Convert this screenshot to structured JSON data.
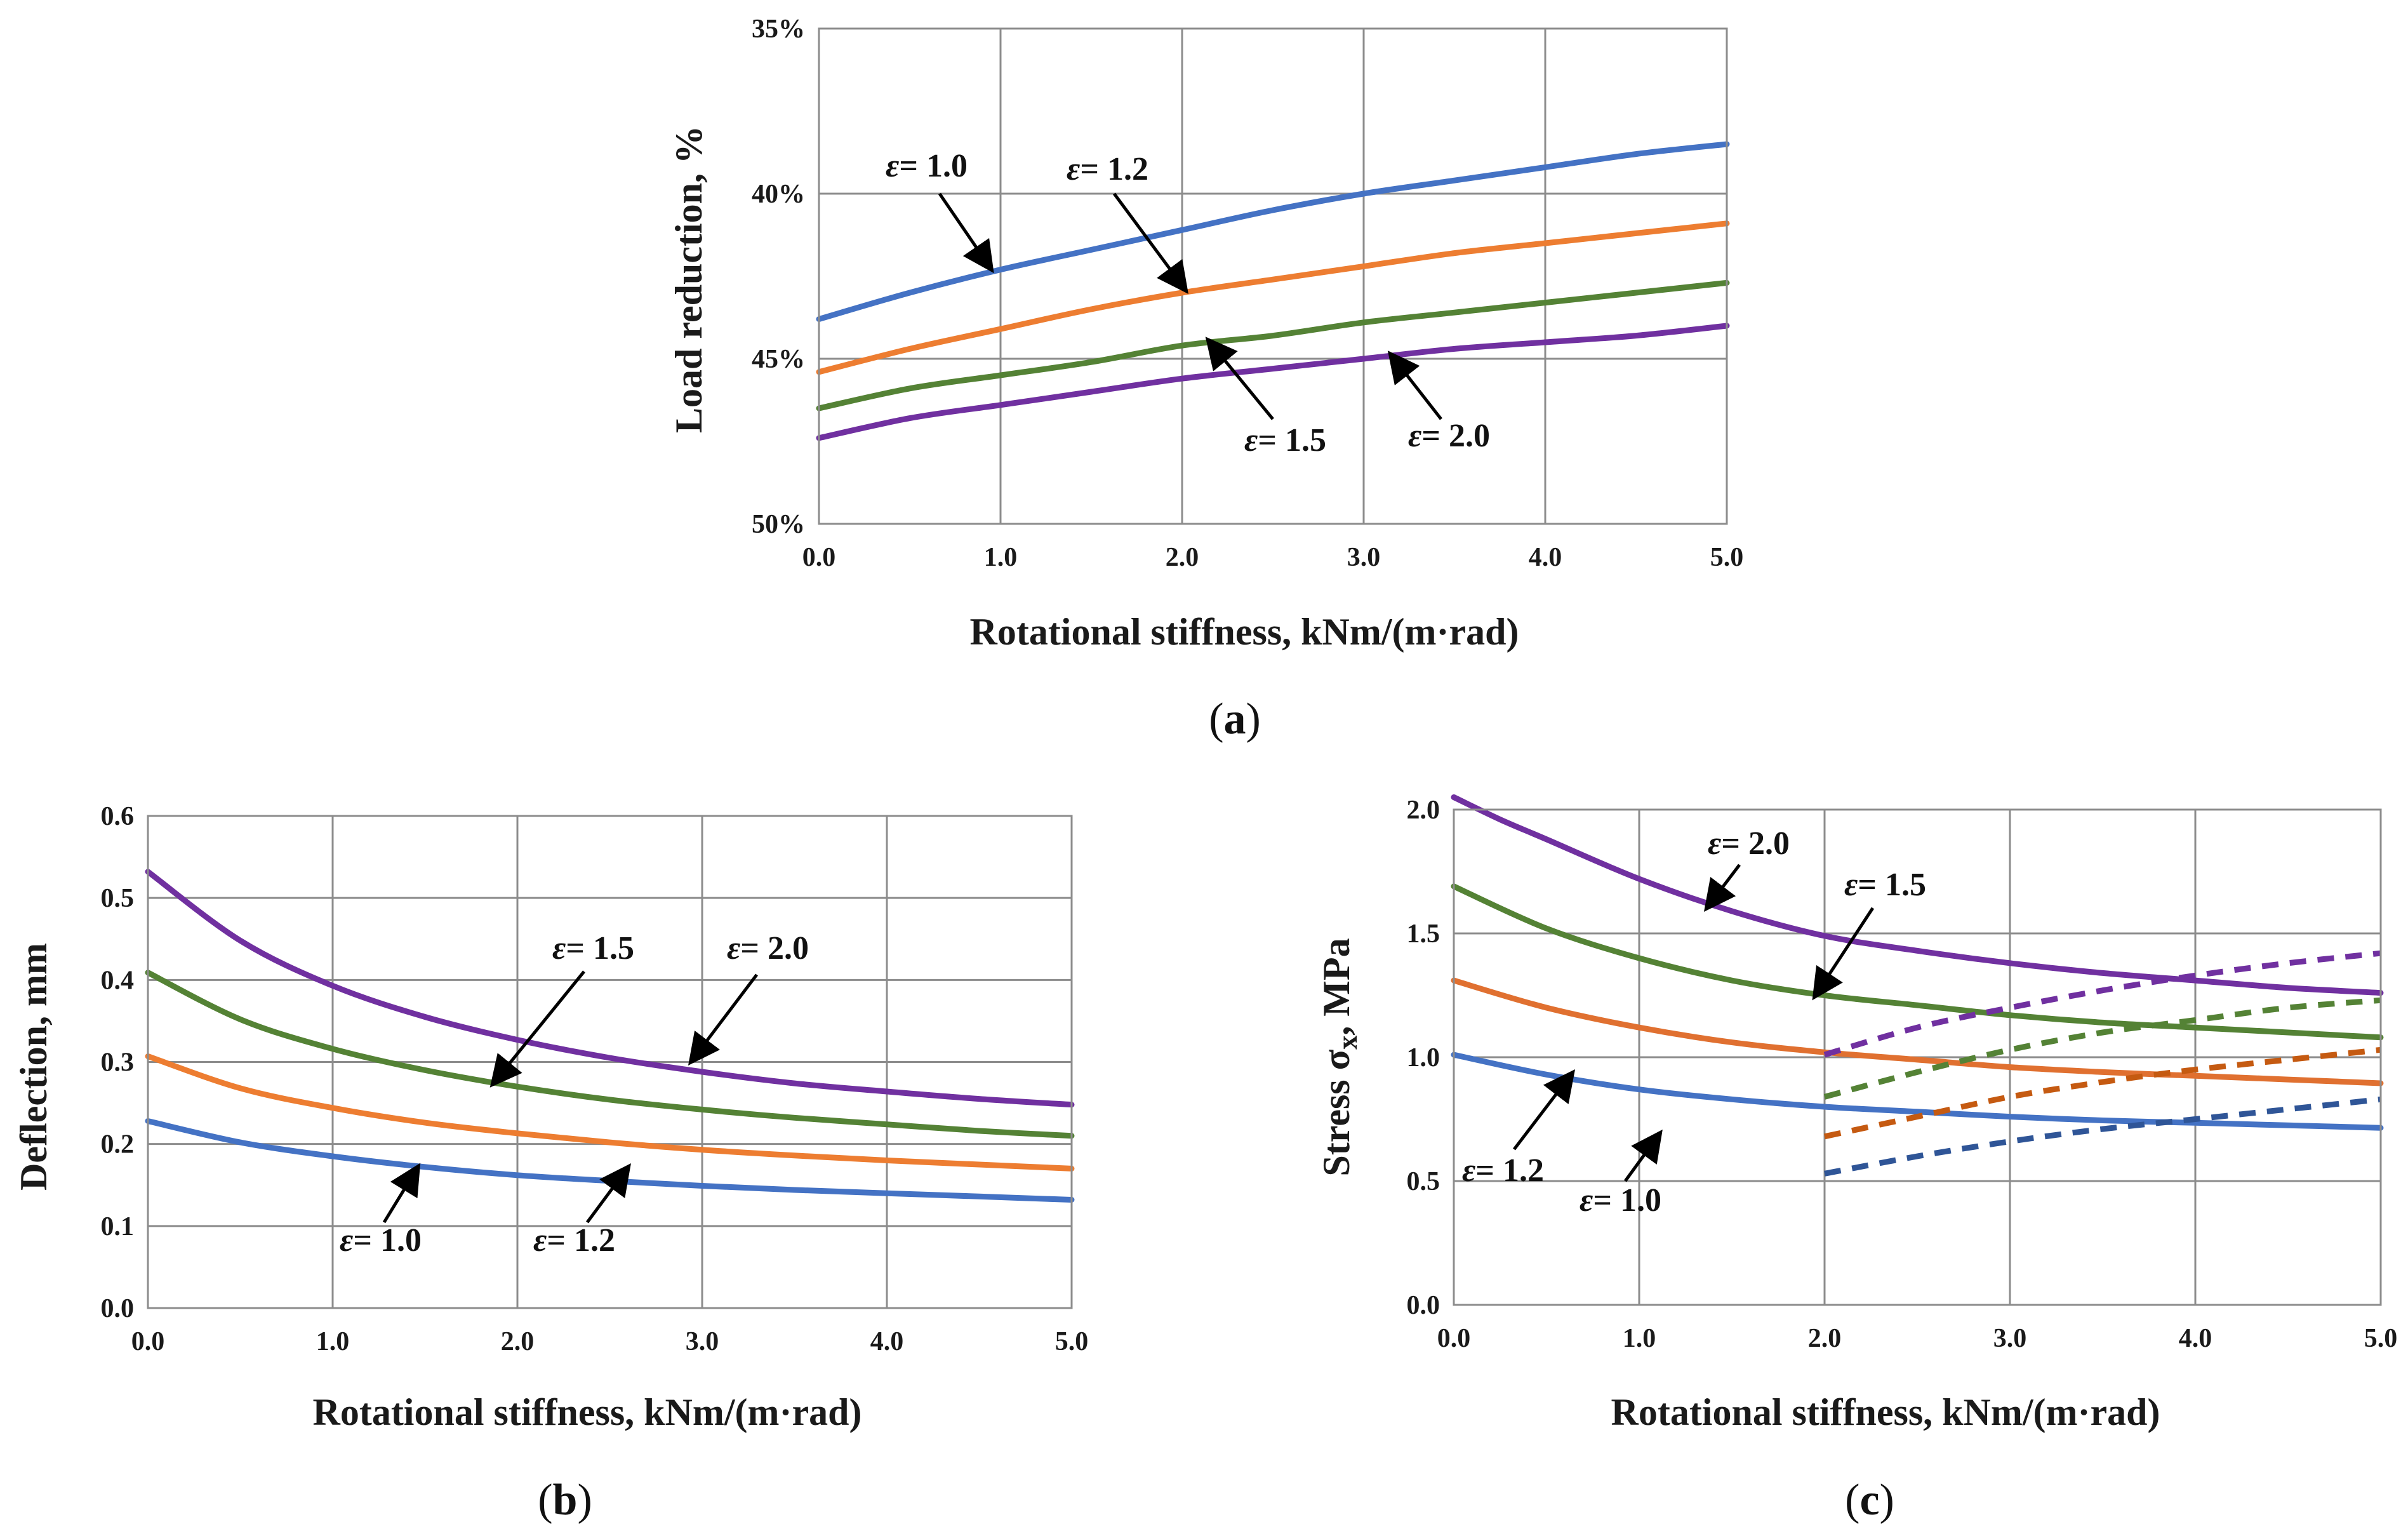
{
  "chart_data": [
    {
      "type": "line",
      "panel_label": "a",
      "xlabel": "Rotational stiffness, kNm/(m·rad)",
      "ylabel": "Load reduction, %",
      "xlim": [
        0,
        5
      ],
      "ylim": [
        35,
        50
      ],
      "y_inverted": true,
      "x_ticks": [
        "0.0",
        "1.0",
        "2.0",
        "3.0",
        "4.0",
        "5.0"
      ],
      "y_ticks": [
        "35%",
        "40%",
        "45%",
        "50%"
      ],
      "y_tick_values": [
        35,
        40,
        45,
        50
      ],
      "grid": true,
      "series": [
        {
          "name": "ε = 1.0",
          "color": "#4472c4",
          "x": [
            0,
            0.5,
            1,
            1.5,
            2,
            2.5,
            3,
            3.5,
            4,
            4.5,
            5
          ],
          "y": [
            43.8,
            43.0,
            42.3,
            41.7,
            41.1,
            40.5,
            40.0,
            39.6,
            39.2,
            38.8,
            38.5
          ]
        },
        {
          "name": "ε = 1.2",
          "color": "#ed7d31",
          "x": [
            0,
            0.5,
            1,
            1.5,
            2,
            2.5,
            3,
            3.5,
            4,
            4.5,
            5
          ],
          "y": [
            45.4,
            44.7,
            44.1,
            43.5,
            43.0,
            42.6,
            42.2,
            41.8,
            41.5,
            41.2,
            40.9
          ]
        },
        {
          "name": "ε = 1.5",
          "color": "#548235",
          "x": [
            0,
            0.5,
            1,
            1.5,
            2,
            2.5,
            3,
            3.5,
            4,
            4.5,
            5
          ],
          "y": [
            46.5,
            45.9,
            45.5,
            45.1,
            44.6,
            44.3,
            43.9,
            43.6,
            43.3,
            43.0,
            42.7
          ]
        },
        {
          "name": "ε = 2.0",
          "color": "#7030a0",
          "x": [
            0,
            0.5,
            1,
            1.5,
            2,
            2.5,
            3,
            3.5,
            4,
            4.5,
            5
          ],
          "y": [
            47.4,
            46.8,
            46.4,
            46.0,
            45.6,
            45.3,
            45.0,
            44.7,
            44.5,
            44.3,
            44.0
          ]
        }
      ],
      "annotations": [
        {
          "eps": "ε",
          "value": "= 1.0"
        },
        {
          "eps": "ε",
          "value": "= 1.2"
        },
        {
          "eps": "ε",
          "value": "= 1.5"
        },
        {
          "eps": "ε",
          "value": "= 2.0"
        }
      ]
    },
    {
      "type": "line",
      "panel_label": "b",
      "xlabel": "Rotational stiffness, kNm/(m·rad)",
      "ylabel": "Deflection, mm",
      "xlim": [
        0,
        5
      ],
      "ylim": [
        0,
        0.6
      ],
      "x_ticks": [
        "0.0",
        "1.0",
        "2.0",
        "3.0",
        "4.0",
        "5.0"
      ],
      "y_ticks": [
        "0.0",
        "0.1",
        "0.2",
        "0.3",
        "0.4",
        "0.5",
        "0.6"
      ],
      "y_tick_values": [
        0,
        0.1,
        0.2,
        0.3,
        0.4,
        0.5,
        0.6
      ],
      "grid": true,
      "series": [
        {
          "name": "ε = 1.0",
          "color": "#4472c4",
          "x": [
            0,
            0.5,
            1,
            1.5,
            2,
            2.5,
            3,
            3.5,
            4,
            4.5,
            5
          ],
          "y": [
            0.228,
            0.202,
            0.185,
            0.172,
            0.162,
            0.155,
            0.149,
            0.144,
            0.14,
            0.136,
            0.132
          ]
        },
        {
          "name": "ε = 1.2",
          "color": "#ed7d31",
          "x": [
            0,
            0.5,
            1,
            1.5,
            2,
            2.5,
            3,
            3.5,
            4,
            4.5,
            5
          ],
          "y": [
            0.307,
            0.268,
            0.244,
            0.226,
            0.213,
            0.202,
            0.193,
            0.186,
            0.18,
            0.175,
            0.17
          ]
        },
        {
          "name": "ε = 1.5",
          "color": "#548235",
          "x": [
            0,
            0.5,
            1,
            1.5,
            2,
            2.5,
            3,
            3.5,
            4,
            4.5,
            5
          ],
          "y": [
            0.409,
            0.352,
            0.316,
            0.29,
            0.27,
            0.254,
            0.242,
            0.232,
            0.224,
            0.216,
            0.21
          ]
        },
        {
          "name": "ε = 2.0",
          "color": "#7030a0",
          "x": [
            0,
            0.5,
            1,
            1.5,
            2,
            2.5,
            3,
            3.5,
            4,
            4.5,
            5
          ],
          "y": [
            0.532,
            0.448,
            0.393,
            0.355,
            0.327,
            0.305,
            0.288,
            0.274,
            0.264,
            0.255,
            0.248
          ]
        }
      ],
      "annotations": [
        {
          "eps": "ε",
          "value": "= 1.5"
        },
        {
          "eps": "ε",
          "value": "= 2.0"
        },
        {
          "eps": "ε",
          "value": "= 1.0"
        },
        {
          "eps": "ε",
          "value": "= 1.2"
        }
      ]
    },
    {
      "type": "line",
      "panel_label": "c",
      "xlabel": "Rotational stiffness, kNm/(m·rad)",
      "ylabel": "Stress σx, MPa",
      "xlim": [
        0,
        5
      ],
      "ylim": [
        0,
        2
      ],
      "x_ticks": [
        "0.0",
        "1.0",
        "2.0",
        "3.0",
        "4.0",
        "5.0"
      ],
      "y_ticks": [
        "0.0",
        "0.5",
        "1.0",
        "1.5",
        "2.0"
      ],
      "y_tick_values": [
        0,
        0.5,
        1,
        1.5,
        2
      ],
      "grid": true,
      "series": [
        {
          "name": "ε = 1.0",
          "color": "#4472c4",
          "style": "solid",
          "x": [
            0,
            0.5,
            1,
            1.5,
            2,
            2.5,
            3,
            3.5,
            4,
            4.5,
            5
          ],
          "y": [
            1.01,
            0.93,
            0.87,
            0.83,
            0.8,
            0.78,
            0.76,
            0.745,
            0.735,
            0.725,
            0.715
          ]
        },
        {
          "name": "ε = 1.2",
          "color": "#e07030",
          "style": "solid",
          "x": [
            0,
            0.5,
            1,
            1.5,
            2,
            2.5,
            3,
            3.5,
            4,
            4.5,
            5
          ],
          "y": [
            1.31,
            1.2,
            1.12,
            1.06,
            1.02,
            0.99,
            0.96,
            0.94,
            0.925,
            0.91,
            0.895
          ]
        },
        {
          "name": "ε = 1.5",
          "color": "#548235",
          "style": "solid",
          "x": [
            0,
            0.5,
            1,
            1.5,
            2,
            2.5,
            3,
            3.5,
            4,
            4.5,
            5
          ],
          "y": [
            1.69,
            1.52,
            1.4,
            1.31,
            1.25,
            1.21,
            1.17,
            1.14,
            1.12,
            1.1,
            1.08
          ]
        },
        {
          "name": "ε = 2.0",
          "color": "#7030a0",
          "style": "solid",
          "x": [
            0,
            0.25,
            0.5,
            1,
            1.5,
            2,
            2.5,
            3,
            3.5,
            4,
            4.5,
            5
          ],
          "y": [
            2.05,
            1.96,
            1.88,
            1.72,
            1.59,
            1.49,
            1.43,
            1.38,
            1.34,
            1.31,
            1.28,
            1.26
          ]
        },
        {
          "color": "#2f5597",
          "style": "dashed",
          "x": [
            2,
            2.5,
            3,
            3.5,
            4,
            4.5,
            5
          ],
          "y": [
            0.53,
            0.6,
            0.66,
            0.71,
            0.75,
            0.79,
            0.83
          ]
        },
        {
          "color": "#c55a11",
          "style": "dashed",
          "x": [
            2,
            2.5,
            3,
            3.5,
            4,
            4.5,
            5
          ],
          "y": [
            0.68,
            0.76,
            0.84,
            0.9,
            0.95,
            0.99,
            1.03
          ]
        },
        {
          "color": "#548235",
          "style": "dashed",
          "x": [
            2,
            2.5,
            3,
            3.5,
            4,
            4.5,
            5
          ],
          "y": [
            0.84,
            0.94,
            1.03,
            1.1,
            1.15,
            1.2,
            1.23
          ]
        },
        {
          "color": "#7030a0",
          "style": "dashed",
          "x": [
            2,
            2.5,
            3,
            3.5,
            4,
            4.5,
            5
          ],
          "y": [
            1.01,
            1.12,
            1.2,
            1.27,
            1.33,
            1.38,
            1.42
          ]
        }
      ],
      "annotations": [
        {
          "eps": "ε",
          "value": "= 2.0"
        },
        {
          "eps": "ε",
          "value": "= 1.5"
        },
        {
          "eps": "ε",
          "value": "= 1.2"
        },
        {
          "eps": "ε",
          "value": "= 1.0"
        }
      ]
    }
  ]
}
